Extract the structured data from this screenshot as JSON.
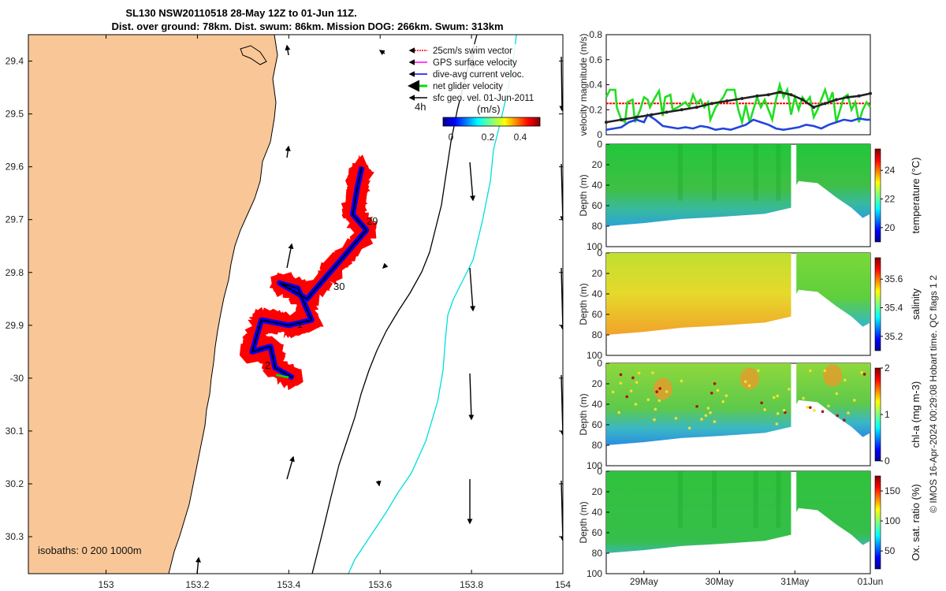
{
  "title": {
    "line1": "SL130 NSW20110518 28-May 12Z to 01-Jun 11Z.",
    "line2": "Dist. over ground: 78km. Dist. swum: 86km. Mission DOG: 266km. Swum: 313km"
  },
  "map": {
    "lon_ticks": [
      "153",
      "153.2",
      "153.4",
      "153.6",
      "153.8",
      "154"
    ],
    "lat_ticks": [
      "29.4",
      "29.5",
      "29.6",
      "29.7",
      "29.8",
      "29.9",
      "-30",
      "30.1",
      "30.2",
      "30.3"
    ],
    "lon_range": [
      152.83,
      154.0
    ],
    "lat_range": [
      -30.37,
      -29.35
    ],
    "isobath_label": "isobaths: 0   200  1000m",
    "time_label": "4h",
    "day_labels": [
      "29",
      "30",
      "1",
      "2"
    ],
    "colorbar": {
      "label": "(m/s)",
      "ticks": [
        "0",
        "0.2",
        "0.4"
      ],
      "range": [
        0,
        0.5
      ]
    },
    "legend": [
      {
        "label": "25cm/s swim vector",
        "color": "#ff0000"
      },
      {
        "label": "GPS surface velocity",
        "color": "#ff00ff"
      },
      {
        "label": "dive-avg current veloc.",
        "color": "#0000ff"
      },
      {
        "label": "net glider velocity",
        "color": "#00e000"
      },
      {
        "label": "sfc geo. vel. 01-Jun-2011",
        "color": "#000000"
      }
    ],
    "track": [
      [
        153.56,
        -29.6
      ],
      [
        153.55,
        -29.64
      ],
      [
        153.54,
        -29.69
      ],
      [
        153.57,
        -29.72
      ],
      [
        153.5,
        -29.79
      ],
      [
        153.44,
        -29.85
      ],
      [
        153.38,
        -29.82
      ],
      [
        153.42,
        -29.83
      ],
      [
        153.45,
        -29.89
      ],
      [
        153.4,
        -29.9
      ],
      [
        153.34,
        -29.89
      ],
      [
        153.32,
        -29.95
      ],
      [
        153.36,
        -29.94
      ],
      [
        153.37,
        -29.98
      ],
      [
        153.41,
        -30.0
      ]
    ]
  },
  "chart_data": [
    {
      "type": "line",
      "ylabel": "velocity magnitude (m/s)",
      "ylim": [
        0,
        0.8
      ],
      "yticks": [
        "0",
        "0.2",
        "0.4",
        "0.6",
        "0.8"
      ],
      "x_range_days": [
        28.5,
        32.0
      ],
      "series": [
        {
          "name": "25cm/s swim vector",
          "color": "#ff0000",
          "values": [
            [
              28.5,
              0.25
            ],
            [
              32.0,
              0.25
            ]
          ]
        },
        {
          "name": "net glider velocity",
          "color": "#22dd22",
          "values": [
            [
              28.5,
              0.3
            ],
            [
              28.55,
              0.36
            ],
            [
              28.62,
              0.36
            ],
            [
              28.64,
              0.22
            ],
            [
              28.7,
              0.12
            ],
            [
              28.75,
              0.1
            ],
            [
              28.78,
              0.26
            ],
            [
              28.85,
              0.28
            ],
            [
              28.88,
              0.1
            ],
            [
              28.95,
              0.2
            ],
            [
              29.0,
              0.3
            ],
            [
              29.05,
              0.28
            ],
            [
              29.08,
              0.22
            ],
            [
              29.15,
              0.3
            ],
            [
              29.2,
              0.35
            ],
            [
              29.25,
              0.15
            ],
            [
              29.28,
              0.3
            ],
            [
              29.35,
              0.32
            ],
            [
              29.38,
              0.2
            ],
            [
              29.45,
              0.22
            ],
            [
              29.55,
              0.26
            ],
            [
              29.6,
              0.22
            ],
            [
              29.65,
              0.32
            ],
            [
              29.7,
              0.25
            ],
            [
              29.75,
              0.28
            ],
            [
              29.8,
              0.22
            ],
            [
              29.85,
              0.26
            ],
            [
              29.88,
              0.12
            ],
            [
              29.95,
              0.22
            ],
            [
              30.05,
              0.3
            ],
            [
              30.1,
              0.36
            ],
            [
              30.2,
              0.36
            ],
            [
              30.25,
              0.2
            ],
            [
              30.3,
              0.1
            ],
            [
              30.35,
              0.24
            ],
            [
              30.4,
              0.1
            ],
            [
              30.45,
              0.2
            ],
            [
              30.5,
              0.3
            ],
            [
              30.55,
              0.22
            ],
            [
              30.6,
              0.28
            ],
            [
              30.65,
              0.2
            ],
            [
              30.7,
              0.12
            ],
            [
              30.75,
              0.28
            ],
            [
              30.8,
              0.4
            ],
            [
              30.85,
              0.3
            ],
            [
              30.9,
              0.36
            ],
            [
              30.95,
              0.16
            ],
            [
              31.0,
              0.3
            ],
            [
              31.05,
              0.2
            ],
            [
              31.1,
              0.3
            ],
            [
              31.15,
              0.26
            ],
            [
              31.2,
              0.3
            ],
            [
              31.25,
              0.14
            ],
            [
              31.3,
              0.2
            ],
            [
              31.35,
              0.28
            ],
            [
              31.4,
              0.36
            ],
            [
              31.45,
              0.26
            ],
            [
              31.5,
              0.34
            ],
            [
              31.55,
              0.1
            ],
            [
              31.6,
              0.2
            ],
            [
              31.65,
              0.3
            ],
            [
              31.7,
              0.32
            ],
            [
              31.75,
              0.2
            ],
            [
              31.8,
              0.26
            ],
            [
              31.85,
              0.1
            ],
            [
              31.9,
              0.2
            ],
            [
              31.95,
              0.26
            ],
            [
              32.0,
              0.22
            ]
          ]
        },
        {
          "name": "dive-avg current veloc.",
          "color": "#2244dd",
          "values": [
            [
              28.5,
              0.04
            ],
            [
              28.6,
              0.05
            ],
            [
              28.7,
              0.06
            ],
            [
              28.8,
              0.1
            ],
            [
              28.9,
              0.12
            ],
            [
              29.0,
              0.1
            ],
            [
              29.05,
              0.16
            ],
            [
              29.15,
              0.12
            ],
            [
              29.25,
              0.07
            ],
            [
              29.35,
              0.06
            ],
            [
              29.45,
              0.05
            ],
            [
              29.55,
              0.06
            ],
            [
              29.65,
              0.05
            ],
            [
              29.75,
              0.07
            ],
            [
              29.85,
              0.06
            ],
            [
              29.95,
              0.04
            ],
            [
              30.05,
              0.05
            ],
            [
              30.15,
              0.04
            ],
            [
              30.25,
              0.06
            ],
            [
              30.35,
              0.08
            ],
            [
              30.45,
              0.12
            ],
            [
              30.55,
              0.1
            ],
            [
              30.65,
              0.08
            ],
            [
              30.75,
              0.05
            ],
            [
              30.85,
              0.04
            ],
            [
              30.95,
              0.05
            ],
            [
              31.05,
              0.06
            ],
            [
              31.15,
              0.08
            ],
            [
              31.25,
              0.07
            ],
            [
              31.35,
              0.05
            ],
            [
              31.45,
              0.08
            ],
            [
              31.55,
              0.1
            ],
            [
              31.65,
              0.12
            ],
            [
              31.75,
              0.11
            ],
            [
              31.85,
              0.13
            ],
            [
              31.95,
              0.12
            ],
            [
              32.0,
              0.12
            ]
          ]
        },
        {
          "name": "sfc geo. vel.",
          "color": "#222222",
          "values": [
            [
              28.5,
              0.1
            ],
            [
              28.7,
              0.12
            ],
            [
              28.9,
              0.14
            ],
            [
              29.1,
              0.16
            ],
            [
              29.3,
              0.18
            ],
            [
              29.5,
              0.2
            ],
            [
              29.7,
              0.22
            ],
            [
              29.9,
              0.25
            ],
            [
              30.1,
              0.27
            ],
            [
              30.3,
              0.29
            ],
            [
              30.5,
              0.31
            ],
            [
              30.65,
              0.32
            ],
            [
              30.8,
              0.34
            ],
            [
              30.95,
              0.32
            ],
            [
              31.1,
              0.28
            ],
            [
              31.25,
              0.22
            ],
            [
              31.4,
              0.25
            ],
            [
              31.55,
              0.28
            ],
            [
              31.7,
              0.3
            ],
            [
              31.85,
              0.31
            ],
            [
              32.0,
              0.33
            ]
          ]
        }
      ]
    },
    {
      "type": "heatmap",
      "variable": "temperature",
      "cbar_label": "temperature (°C)",
      "cbar_ticks": [
        "20",
        "22",
        "24"
      ],
      "cbar_range": [
        19,
        25.5
      ],
      "ylabel": "Depth (m)",
      "yticks": [
        "0",
        "20",
        "40",
        "60",
        "80",
        "100"
      ],
      "ylim": [
        0,
        100
      ],
      "dominant_value": 22.5
    },
    {
      "type": "heatmap",
      "variable": "salinity",
      "cbar_label": "salinity",
      "cbar_ticks": [
        "35.2",
        "35.4",
        "35.6"
      ],
      "cbar_range": [
        35.1,
        35.75
      ],
      "ylabel": "Depth (m)",
      "yticks": [
        "0",
        "20",
        "40",
        "60",
        "80",
        "100"
      ],
      "ylim": [
        0,
        100
      ],
      "dominant_value": 35.45
    },
    {
      "type": "heatmap",
      "variable": "chl-a",
      "cbar_label": "chl-a (mg m-3)",
      "cbar_ticks": [
        "0",
        "1",
        "2"
      ],
      "cbar_range": [
        0,
        2
      ],
      "ylabel": "Depth (m)",
      "yticks": [
        "0",
        "20",
        "40",
        "60",
        "80",
        "100"
      ],
      "ylim": [
        0,
        100
      ],
      "dominant_value": 1.0
    },
    {
      "type": "heatmap",
      "variable": "oxygen saturation",
      "cbar_label": "Ox. sat. ratio (%)",
      "cbar_ticks": [
        "50",
        "100",
        "150"
      ],
      "cbar_range": [
        20,
        175
      ],
      "ylabel": "Depth (m)",
      "yticks": [
        "0",
        "20",
        "40",
        "60",
        "80",
        "100"
      ],
      "ylim": [
        0,
        100
      ],
      "dominant_value": 100
    }
  ],
  "time_axis": {
    "ticks": [
      "29May",
      "30May",
      "31May",
      "01Jun"
    ],
    "tick_days": [
      29,
      30,
      31,
      32
    ],
    "range_days": [
      28.5,
      32.0
    ]
  },
  "credit": "© IMOS 16-Apr-2024 00:29:08 Hobart time. QC flags 1  2",
  "colors": {
    "land": "#f9c797",
    "track_red": "#ff0000",
    "track_blue": "#0000ff",
    "isobath_200": "#00dddd"
  }
}
